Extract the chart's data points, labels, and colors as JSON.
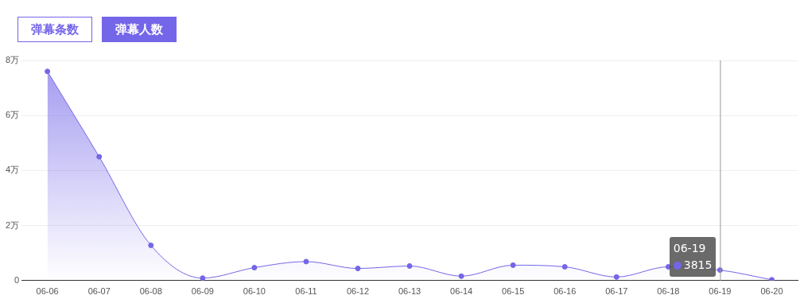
{
  "chart_data": {
    "type": "area",
    "categories": [
      "06-06",
      "06-07",
      "06-08",
      "06-09",
      "06-10",
      "06-11",
      "06-12",
      "06-13",
      "06-14",
      "06-15",
      "06-16",
      "06-17",
      "06-18",
      "06-19",
      "06-20"
    ],
    "series": [
      {
        "color": "#7466e8",
        "values": [
          7.6,
          4.5,
          1.28,
          0.09,
          0.47,
          0.69,
          0.44,
          0.53,
          0.16,
          0.56,
          0.5,
          0.13,
          0.5,
          0.3815,
          0.03
        ]
      }
    ],
    "ylim": [
      0,
      8
    ],
    "yticks": [
      0,
      {
        "value": 2,
        "label": "2万"
      },
      {
        "value": 4,
        "label": "4万"
      },
      {
        "value": 6,
        "label": "6万"
      },
      {
        "value": 8,
        "label": "8万"
      }
    ],
    "ref_lines": [
      {
        "axis": "x",
        "value": "06-19",
        "color": "#999999"
      }
    ],
    "grid": "y",
    "marker": "circle",
    "legend": false,
    "annotations": [
      "弹幕条数",
      "弹幕人数",
      {
        "text": "3815",
        "x": "06-19",
        "y": 0.3815
      }
    ]
  }
}
